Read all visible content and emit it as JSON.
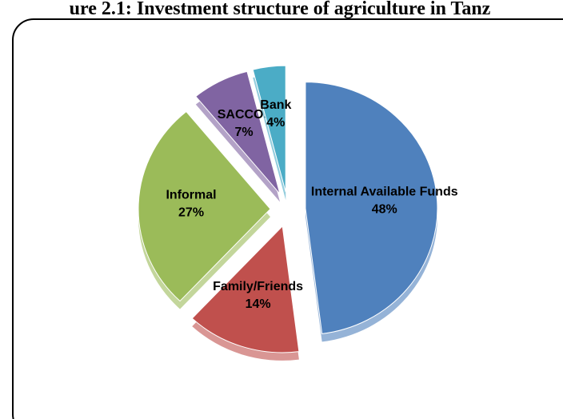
{
  "chart_data": {
    "type": "pie",
    "title": "ure 2.1: Investment structure of agriculture in Tanz",
    "categories": [
      "Internal Available Funds",
      "Family/Friends",
      "Informal",
      "SACCOs",
      "Bank"
    ],
    "values": [
      48,
      14,
      27,
      7,
      4
    ],
    "value_labels": [
      "48%",
      "14%",
      "27%",
      "7%",
      "4%"
    ],
    "colors": [
      "#4f81bd",
      "#c0504d",
      "#9bbb59",
      "#8064a2",
      "#4bacc6"
    ]
  }
}
